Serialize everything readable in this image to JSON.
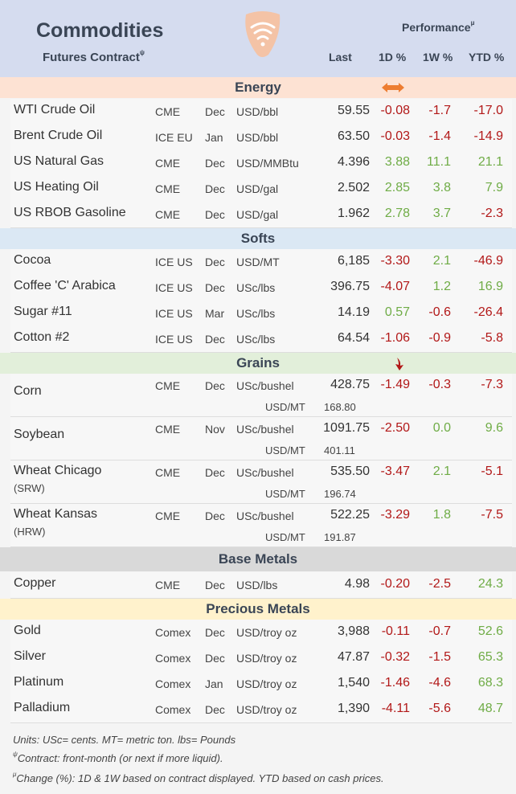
{
  "header": {
    "title": "Commodities",
    "subtitle": "Futures Contract",
    "subtitle_sup": "ψ",
    "performance": "Performance",
    "performance_sup": "μ",
    "col_last": "Last",
    "col_1d": "1D %",
    "col_1w": "1W %",
    "col_ytd": "YTD %"
  },
  "sections": {
    "energy": "Energy",
    "softs": "Softs",
    "grains": "Grains",
    "base_metals": "Base Metals",
    "precious_metals": "Precious Metals"
  },
  "energy": [
    {
      "name": "WTI Crude Oil",
      "exchange": "CME",
      "month": "Dec",
      "unit": "USD/bbl",
      "last": "59.55",
      "d1": "-0.08",
      "w1": "-1.7",
      "ytd": "-17.0"
    },
    {
      "name": "Brent Crude Oil",
      "exchange": "ICE EU",
      "month": "Jan",
      "unit": "USD/bbl",
      "last": "63.50",
      "d1": "-0.03",
      "w1": "-1.4",
      "ytd": "-14.9"
    },
    {
      "name": "US Natural Gas",
      "exchange": "CME",
      "month": "Dec",
      "unit": "USD/MMBtu",
      "last": "4.396",
      "d1": "3.88",
      "w1": "11.1",
      "ytd": "21.1"
    },
    {
      "name": "US Heating Oil",
      "exchange": "CME",
      "month": "Dec",
      "unit": "USD/gal",
      "last": "2.502",
      "d1": "2.85",
      "w1": "3.8",
      "ytd": "7.9"
    },
    {
      "name": "US RBOB Gasoline",
      "exchange": "CME",
      "month": "Dec",
      "unit": "USD/gal",
      "last": "1.962",
      "d1": "2.78",
      "w1": "3.7",
      "ytd": "-2.3"
    }
  ],
  "softs": [
    {
      "name": "Cocoa",
      "exchange": "ICE US",
      "month": "Dec",
      "unit": "USD/MT",
      "last": "6,185",
      "d1": "-3.30",
      "w1": "2.1",
      "ytd": "-46.9"
    },
    {
      "name": "Coffee 'C' Arabica",
      "exchange": "ICE US",
      "month": "Dec",
      "unit": "USc/lbs",
      "last": "396.75",
      "d1": "-4.07",
      "w1": "1.2",
      "ytd": "16.9"
    },
    {
      "name": "Sugar #11",
      "exchange": "ICE US",
      "month": "Mar",
      "unit": "USc/lbs",
      "last": "14.19",
      "d1": "0.57",
      "w1": "-0.6",
      "ytd": "-26.4"
    },
    {
      "name": "Cotton #2",
      "exchange": "ICE US",
      "month": "Dec",
      "unit": "USc/lbs",
      "last": "64.54",
      "d1": "-1.06",
      "w1": "-0.9",
      "ytd": "-5.8"
    }
  ],
  "grains": [
    {
      "name": "Corn",
      "name_sub": "",
      "exchange": "CME",
      "month": "Dec",
      "unit": "USc/bushel",
      "last": "428.75",
      "unit2": "USD/MT",
      "last2": "168.80",
      "d1": "-1.49",
      "w1": "-0.3",
      "ytd": "-7.3"
    },
    {
      "name": "Soybean",
      "name_sub": "",
      "exchange": "CME",
      "month": "Nov",
      "unit": "USc/bushel",
      "last": "1091.75",
      "unit2": "USD/MT",
      "last2": "401.11",
      "d1": "-2.50",
      "w1": "0.0",
      "ytd": "9.6"
    },
    {
      "name": "Wheat Chicago",
      "name_sub": "(SRW)",
      "exchange": "CME",
      "month": "Dec",
      "unit": "USc/bushel",
      "last": "535.50",
      "unit2": "USD/MT",
      "last2": "196.74",
      "d1": "-3.47",
      "w1": "2.1",
      "ytd": "-5.1"
    },
    {
      "name": "Wheat Kansas",
      "name_sub": "(HRW)",
      "exchange": "CME",
      "month": "Dec",
      "unit": "USc/bushel",
      "last": "522.25",
      "unit2": "USD/MT",
      "last2": "191.87",
      "d1": "-3.29",
      "w1": "1.8",
      "ytd": "-7.5"
    }
  ],
  "base_metals": [
    {
      "name": "Copper",
      "exchange": "CME",
      "month": "Dec",
      "unit": "USD/lbs",
      "last": "4.98",
      "d1": "-0.20",
      "w1": "-2.5",
      "ytd": "24.3"
    }
  ],
  "precious_metals": [
    {
      "name": "Gold",
      "exchange": "Comex",
      "month": "Dec",
      "unit": "USD/troy oz",
      "last": "3,988",
      "d1": "-0.11",
      "w1": "-0.7",
      "ytd": "52.6"
    },
    {
      "name": "Silver",
      "exchange": "Comex",
      "month": "Dec",
      "unit": "USD/troy oz",
      "last": "47.87",
      "d1": "-0.32",
      "w1": "-1.5",
      "ytd": "65.3"
    },
    {
      "name": "Platinum",
      "exchange": "Comex",
      "month": "Jan",
      "unit": "USD/troy oz",
      "last": "1,540",
      "d1": "-1.46",
      "w1": "-4.6",
      "ytd": "68.3"
    },
    {
      "name": "Palladium",
      "exchange": "Comex",
      "month": "Dec",
      "unit": "USD/troy oz",
      "last": "1,390",
      "d1": "-4.11",
      "w1": "-5.6",
      "ytd": "48.7"
    }
  ],
  "footnotes": {
    "units": "Units: USc= cents.  MT= metric ton.  lbs= Pounds",
    "contract_sup": "ψ",
    "contract": "Contract: front-month (or next if more liquid).",
    "change_sup": "μ",
    "change": "Change (%): 1D & 1W based on contract displayed. YTD based on cash prices."
  },
  "colors": {
    "header_bg": "#d5dcef",
    "energy_bg": "#fde2d3",
    "softs_bg": "#dbe8f4",
    "grains_bg": "#e2efda",
    "base_bg": "#d9d9d9",
    "precious_bg": "#fff2cc",
    "negative": "#b21818",
    "positive": "#6fac46",
    "accent_orange": "#ed7d31"
  },
  "icons": {
    "logo": "wifi-shield-logo",
    "energy_trend": "left-right-arrow-icon",
    "grains_trend": "down-arrow-icon"
  }
}
